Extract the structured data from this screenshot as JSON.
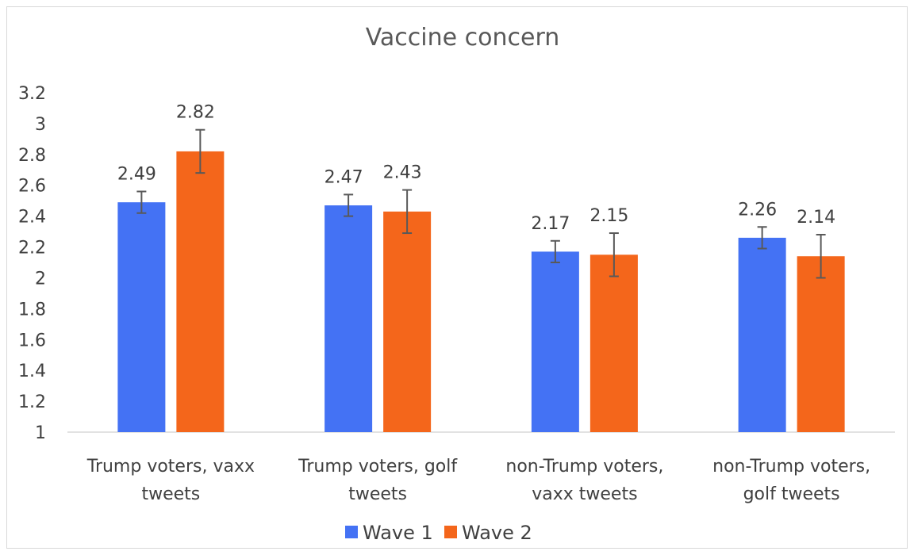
{
  "chart_data": {
    "type": "bar",
    "title": "Vaccine concern",
    "xlabel": "",
    "ylabel": "",
    "ylim": [
      1,
      3.2
    ],
    "yticks": [
      "1",
      "1.2",
      "1.4",
      "1.6",
      "1.8",
      "2",
      "2.2",
      "2.4",
      "2.6",
      "2.8",
      "3",
      "3.2"
    ],
    "categories": [
      [
        "Trump voters, vaxx",
        "tweets"
      ],
      [
        "Trump voters, golf",
        "tweets"
      ],
      [
        "non-Trump voters,",
        "vaxx tweets"
      ],
      [
        "non-Trump voters,",
        "golf tweets"
      ]
    ],
    "series": [
      {
        "name": "Wave 1",
        "color": "#4472F4",
        "values": [
          2.49,
          2.47,
          2.17,
          2.26
        ],
        "errors": [
          0.07,
          0.07,
          0.07,
          0.07
        ],
        "labels": [
          "2.49",
          "2.47",
          "2.17",
          "2.26"
        ]
      },
      {
        "name": "Wave 2",
        "color": "#F4661B",
        "values": [
          2.82,
          2.43,
          2.15,
          2.14
        ],
        "errors": [
          0.14,
          0.14,
          0.14,
          0.14
        ],
        "labels": [
          "2.82",
          "2.43",
          "2.15",
          "2.14"
        ]
      }
    ],
    "grid": false,
    "legend": "bottom"
  }
}
